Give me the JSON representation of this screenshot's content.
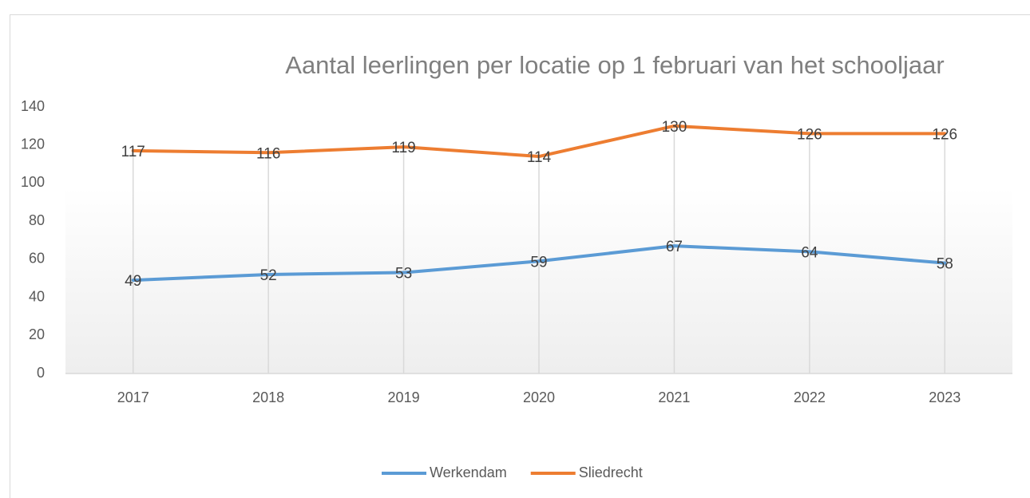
{
  "chart_data": {
    "type": "line",
    "title": "Aantal leerlingen per locatie op 1 februari van het schooljaar",
    "categories": [
      "2017",
      "2018",
      "2019",
      "2020",
      "2021",
      "2022",
      "2023"
    ],
    "series": [
      {
        "name": "Werkendam",
        "color": "#5b9bd5",
        "values": [
          49,
          52,
          53,
          59,
          67,
          64,
          58
        ]
      },
      {
        "name": "Sliedrecht",
        "color": "#ed7d31",
        "values": [
          117,
          116,
          119,
          114,
          130,
          126,
          126
        ]
      }
    ],
    "ylim": [
      0,
      140
    ],
    "yticks": [
      0,
      20,
      40,
      60,
      80,
      100,
      120,
      140
    ],
    "grid": false,
    "drop_lines": true,
    "legend": "bottom"
  }
}
